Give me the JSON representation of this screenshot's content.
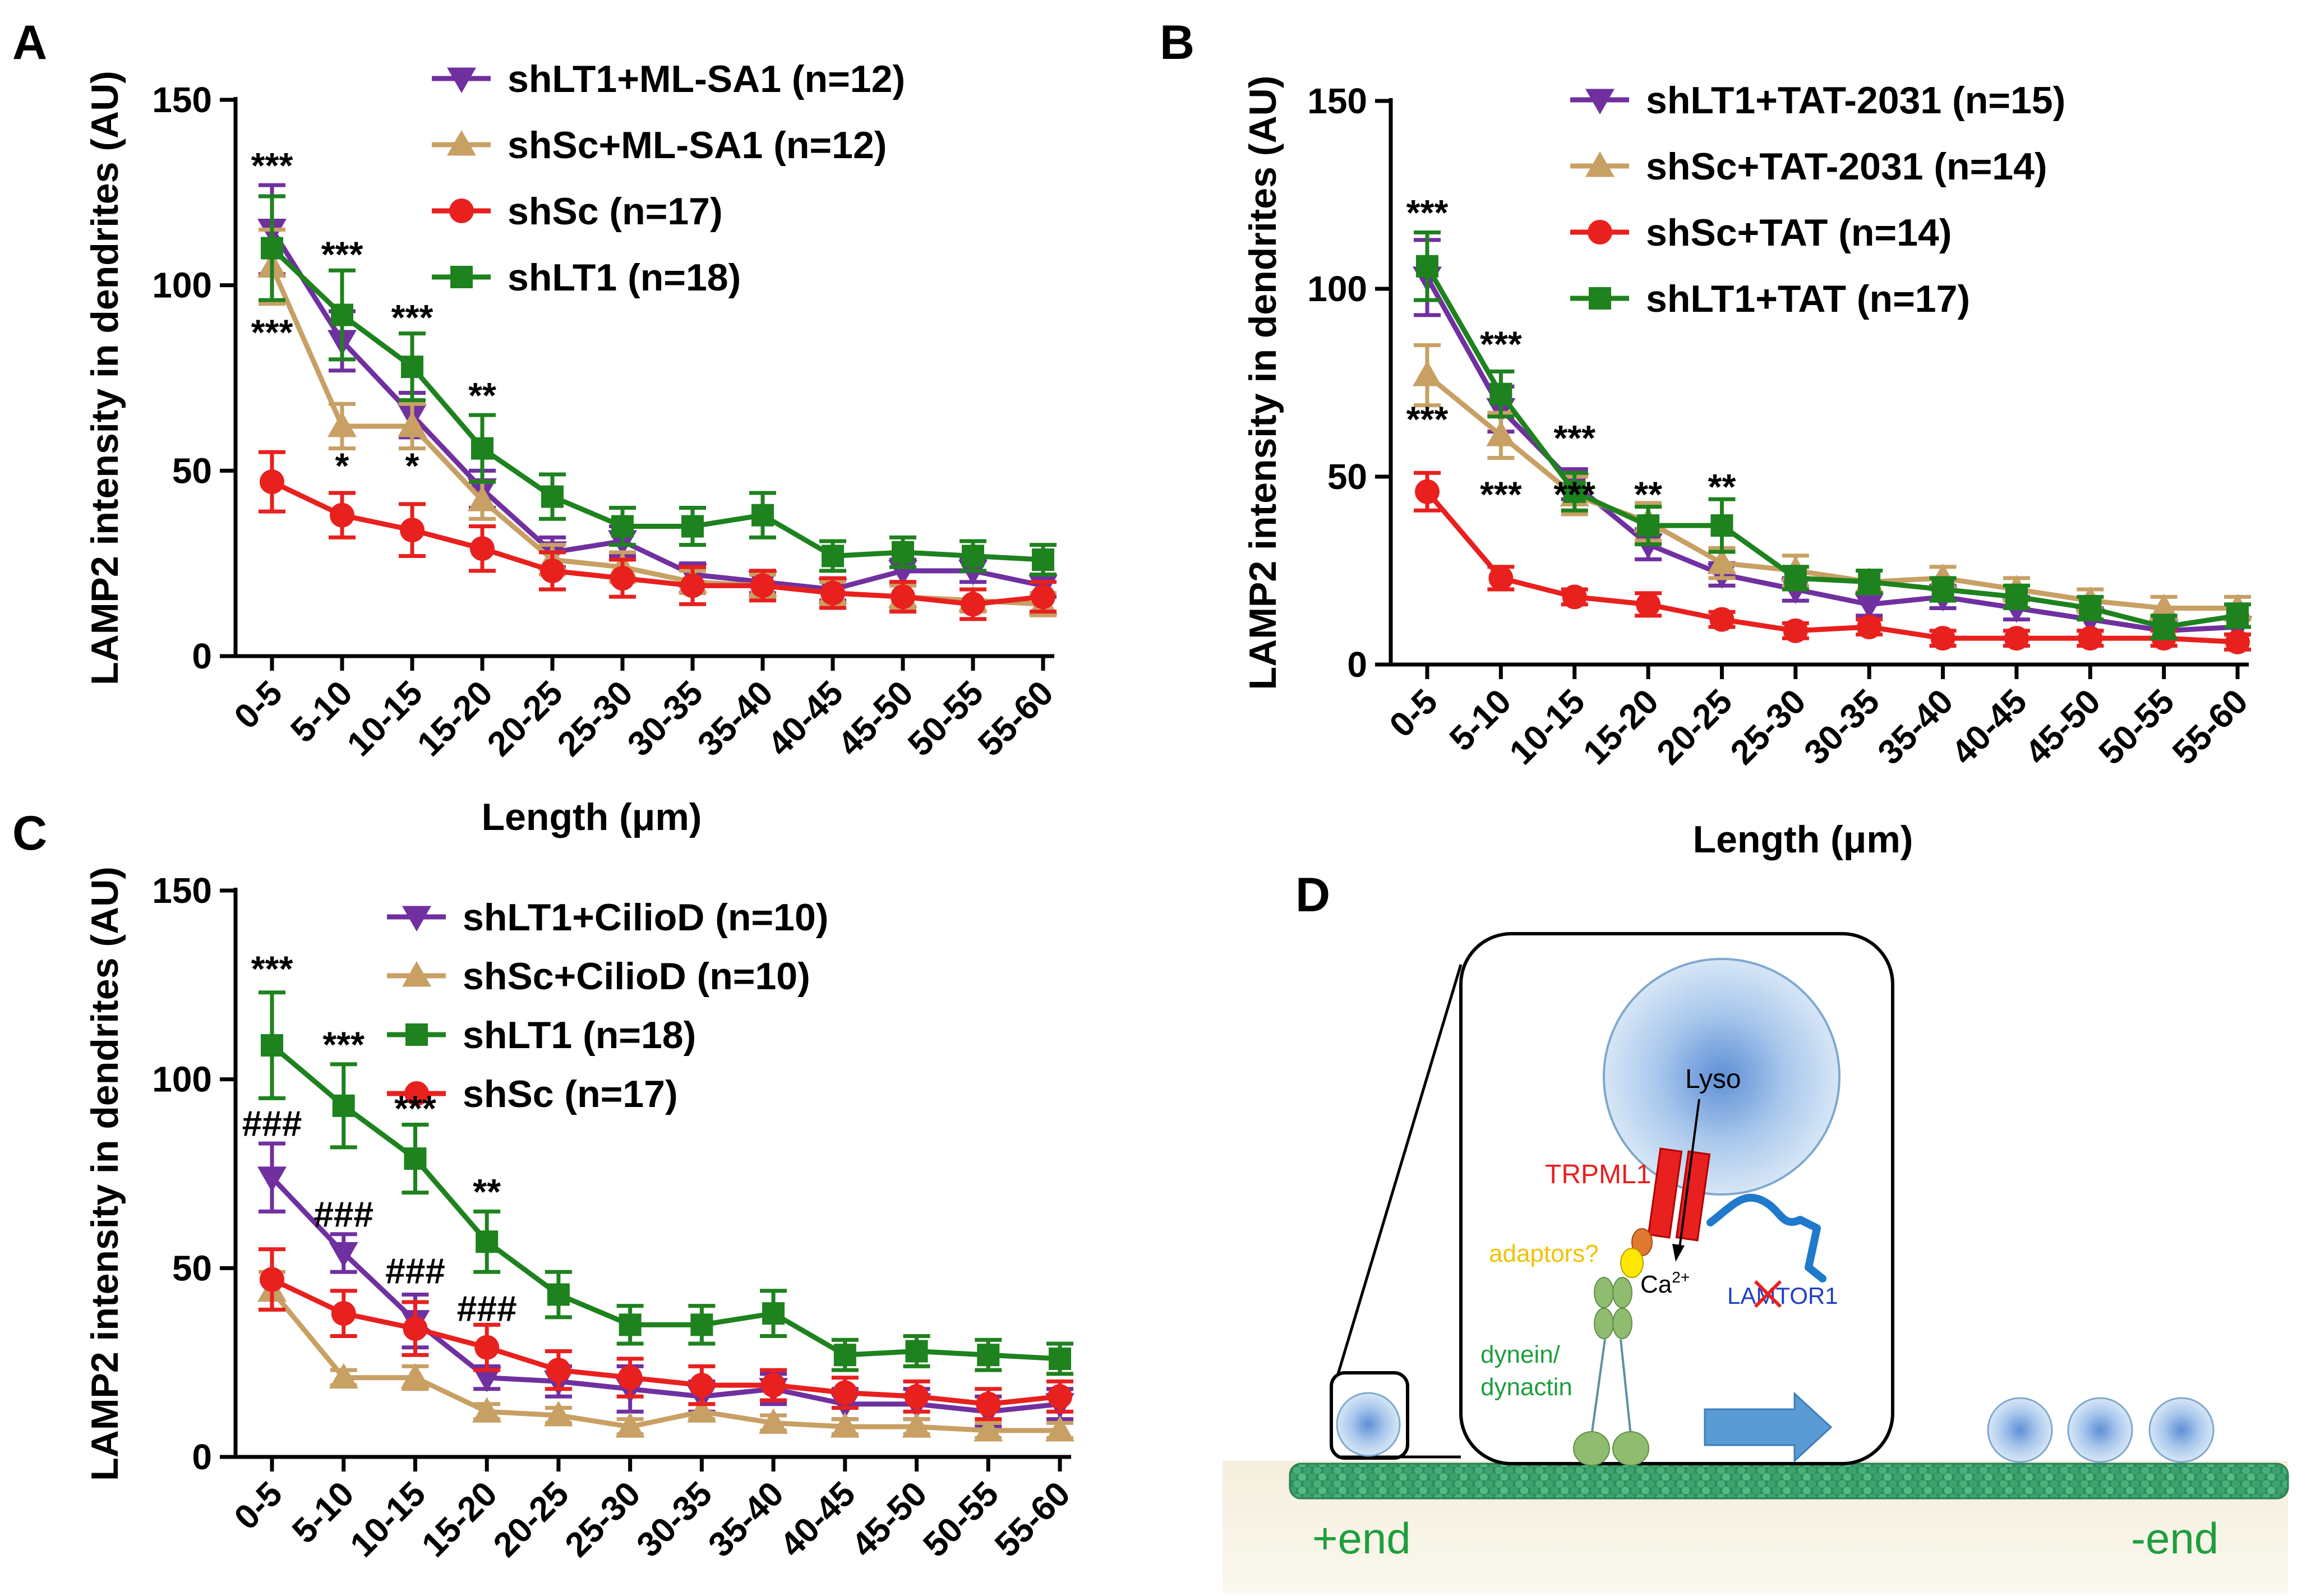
{
  "chart_data": [
    {
      "panel": "A",
      "type": "line",
      "xlabel": "Length (μm)",
      "ylabel": "LAMP2 intensity in dendrites (AU)",
      "ylim": [
        0,
        150
      ],
      "yticks": [
        0,
        50,
        100,
        150
      ],
      "categories": [
        "0-5",
        "5-10",
        "10-15",
        "15-20",
        "20-25",
        "25-30",
        "30-35",
        "35-40",
        "40-45",
        "45-50",
        "50-55",
        "55-60"
      ],
      "legend_position": "top-right",
      "series": [
        {
          "name": "shLT1+ML-SA1  (n=12)",
          "color": "#7030A0",
          "marker": "triangle-down",
          "values": [
            115,
            85,
            65,
            45,
            28,
            31,
            22,
            20,
            18,
            23,
            23,
            19
          ],
          "errors": [
            12,
            8,
            6,
            5,
            4,
            4,
            3,
            3,
            3,
            3,
            3,
            3
          ]
        },
        {
          "name": "shSc+ML-SA1 (n=12)",
          "color": "#C8A064",
          "marker": "triangle-up",
          "values": [
            105,
            62,
            62,
            42,
            26,
            24,
            20,
            19,
            17,
            16,
            15,
            14
          ],
          "errors": [
            10,
            6,
            6,
            5,
            4,
            4,
            3,
            3,
            3,
            3,
            3,
            3
          ]
        },
        {
          "name": "shSc (n=17)",
          "color": "#E8201E",
          "marker": "circle",
          "values": [
            47,
            38,
            34,
            29,
            23,
            21,
            19,
            19,
            17,
            16,
            14,
            16
          ],
          "errors": [
            8,
            6,
            7,
            6,
            5,
            5,
            5,
            4,
            4,
            4,
            4,
            4
          ]
        },
        {
          "name": "shLT1 (n=18)",
          "color": "#1E821E",
          "marker": "square",
          "values": [
            110,
            92,
            78,
            56,
            43,
            35,
            35,
            38,
            27,
            28,
            27,
            26
          ],
          "errors": [
            14,
            12,
            9,
            9,
            6,
            5,
            5,
            6,
            4,
            4,
            4,
            4
          ]
        }
      ],
      "annotations": [
        {
          "text": "***",
          "category": "0-5",
          "value": 129
        },
        {
          "text": "***",
          "category": "0-5",
          "value": 84
        },
        {
          "text": "***",
          "category": "5-10",
          "value": 105
        },
        {
          "text": "*",
          "category": "5-10",
          "value": 48
        },
        {
          "text": "***",
          "category": "10-15",
          "value": 88
        },
        {
          "text": "*",
          "category": "10-15",
          "value": 48
        },
        {
          "text": "**",
          "category": "15-20",
          "value": 67
        }
      ]
    },
    {
      "panel": "B",
      "type": "line",
      "xlabel": "Length (μm)",
      "ylabel": "LAMP2 intensity in dendrites (AU)",
      "ylim": [
        0,
        150
      ],
      "yticks": [
        0,
        50,
        100,
        150
      ],
      "categories": [
        "0-5",
        "5-10",
        "10-15",
        "15-20",
        "20-25",
        "25-30",
        "30-35",
        "35-40",
        "40-45",
        "45-50",
        "50-55",
        "55-60"
      ],
      "legend_position": "top-right",
      "series": [
        {
          "name": "shLT1+TAT-2031  (n=15)",
          "color": "#7030A0",
          "marker": "triangle-down",
          "values": [
            103,
            68,
            48,
            32,
            24,
            20,
            16,
            18,
            15,
            12,
            9,
            10
          ],
          "errors": [
            10,
            6,
            4,
            4,
            3,
            3,
            3,
            3,
            3,
            3,
            2,
            2
          ]
        },
        {
          "name": "shSc+TAT-2031 (n=14)",
          "color": "#C8A064",
          "marker": "triangle-up",
          "values": [
            77,
            61,
            45,
            38,
            27,
            25,
            22,
            23,
            20,
            17,
            15,
            15
          ],
          "errors": [
            8,
            6,
            5,
            5,
            4,
            4,
            3,
            3,
            3,
            3,
            3,
            3
          ]
        },
        {
          "name": "shSc+TAT (n=14)",
          "color": "#E8201E",
          "marker": "circle",
          "values": [
            46,
            23,
            18,
            16,
            12,
            9,
            10,
            7,
            7,
            7,
            7,
            6
          ],
          "errors": [
            5,
            3,
            2,
            3,
            2,
            2,
            2,
            2,
            2,
            2,
            2,
            2
          ]
        },
        {
          "name": "shLT1+TAT (n=17)",
          "color": "#1E821E",
          "marker": "square",
          "values": [
            106,
            72,
            46,
            37,
            37,
            23,
            22,
            20,
            18,
            15,
            10,
            13
          ],
          "errors": [
            9,
            6,
            5,
            5,
            7,
            3,
            3,
            3,
            3,
            3,
            3,
            3
          ]
        }
      ],
      "annotations": [
        {
          "text": "***",
          "category": "0-5",
          "value": 117
        },
        {
          "text": "***",
          "category": "0-5",
          "value": 62
        },
        {
          "text": "***",
          "category": "5-10",
          "value": 82
        },
        {
          "text": "***",
          "category": "5-10",
          "value": 42
        },
        {
          "text": "***",
          "category": "10-15",
          "value": 57
        },
        {
          "text": "***",
          "category": "10-15",
          "value": 42
        },
        {
          "text": "**",
          "category": "15-20",
          "value": 42
        },
        {
          "text": "**",
          "category": "20-25",
          "value": 44
        }
      ]
    },
    {
      "panel": "C",
      "type": "line",
      "xlabel": "",
      "ylabel": "LAMP2 intensity in dendrites (AU)",
      "ylim": [
        0,
        150
      ],
      "yticks": [
        0,
        50,
        100,
        150
      ],
      "categories": [
        "0-5",
        "5-10",
        "10-15",
        "15-20",
        "20-25",
        "25-30",
        "30-35",
        "35-40",
        "40-45",
        "45-50",
        "50-55",
        "55-60"
      ],
      "legend_position": "top-right",
      "series": [
        {
          "name": "shLT1+CilioD  (n=10)",
          "color": "#7030A0",
          "marker": "triangle-down",
          "values": [
            74,
            54,
            36,
            21,
            20,
            18,
            16,
            18,
            14,
            14,
            12,
            14
          ],
          "errors": [
            9,
            5,
            7,
            3,
            4,
            6,
            4,
            4,
            4,
            4,
            4,
            4
          ]
        },
        {
          "name": "shSc+CilioD (n=10)",
          "color": "#C8A064",
          "marker": "triangle-up",
          "values": [
            44,
            21,
            21,
            12,
            11,
            8,
            12,
            9,
            8,
            8,
            7,
            7
          ],
          "errors": [
            5,
            2,
            3,
            2,
            2,
            2,
            2,
            2,
            2,
            2,
            2,
            2
          ]
        },
        {
          "name": "shLT1 (n=18)",
          "color": "#1E821E",
          "marker": "square",
          "values": [
            109,
            93,
            79,
            57,
            43,
            35,
            35,
            38,
            27,
            28,
            27,
            26
          ],
          "errors": [
            14,
            11,
            9,
            8,
            6,
            5,
            5,
            6,
            4,
            4,
            4,
            4
          ]
        },
        {
          "name": "shSc (n=17)",
          "color": "#E8201E",
          "marker": "circle",
          "values": [
            47,
            38,
            34,
            29,
            23,
            21,
            19,
            19,
            17,
            16,
            14,
            16
          ],
          "errors": [
            8,
            6,
            7,
            6,
            5,
            5,
            5,
            4,
            4,
            4,
            4,
            4
          ]
        }
      ],
      "annotations": [
        {
          "text": "***",
          "category": "0-5",
          "value": 126
        },
        {
          "text": "###",
          "category": "0-5",
          "value": 85
        },
        {
          "text": "***",
          "category": "5-10",
          "value": 106
        },
        {
          "text": "###",
          "category": "5-10",
          "value": 61
        },
        {
          "text": "***",
          "category": "10-15",
          "value": 89
        },
        {
          "text": "###",
          "category": "10-15",
          "value": 46
        },
        {
          "text": "**",
          "category": "15-20",
          "value": 67
        },
        {
          "text": "###",
          "category": "15-20",
          "value": 36
        }
      ]
    }
  ],
  "panel_labels": {
    "a": "A",
    "b": "B",
    "c": "C",
    "d": "D"
  },
  "diagram": {
    "lyso": "Lyso",
    "trpml1": "TRPML1",
    "adaptors": "adaptors?",
    "ca_base": "Ca",
    "ca_sup": "2+",
    "lamtor_pre": "LA",
    "lamtor_crossed": "MT",
    "lamtor_post": "OR1",
    "dynein": "dynein/",
    "dynactin": "dynactin",
    "plus_end": "+end",
    "minus_end": "-end",
    "colors": {
      "lysosome": "#BDD7EE",
      "trpml1": "#E8201E",
      "adaptor_yellow": "#FFE800",
      "adaptor_orange": "#E07830",
      "lamtor": "#1F7ACC",
      "dynein": "#8FBC6F",
      "arrow": "#5B9BD5",
      "microtubule": "#2E9E6E",
      "trpml_text": "#E8201E",
      "adaptor_text": "#F2C200",
      "lamtor_text": "#2040C0",
      "dynein_text": "#1E9E3E"
    }
  }
}
